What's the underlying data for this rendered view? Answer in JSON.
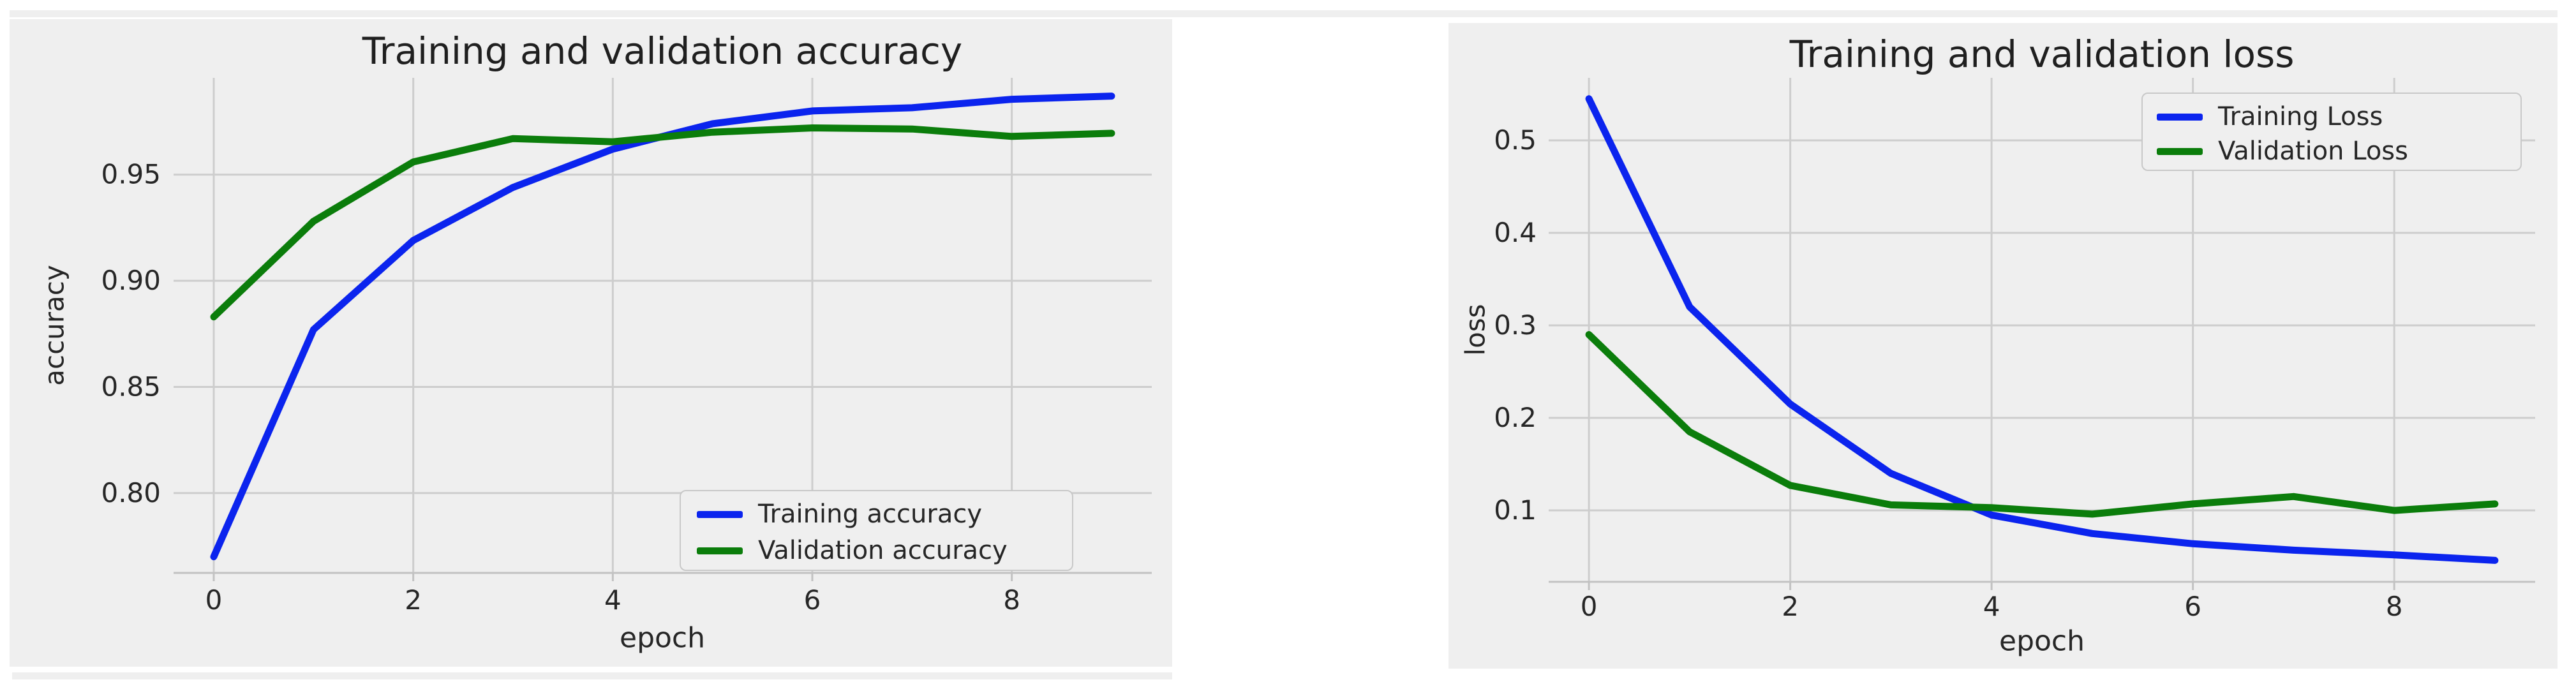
{
  "colors": {
    "page_bg": "#ffffff",
    "figure_bg": "#efefef",
    "grid": "#cdcdcd",
    "spine": "#c2c2c2",
    "tick": "#c2c2c2",
    "text": "#262626",
    "title_text": "#1f1f1f",
    "legend_border": "#c8c8c8",
    "training_color": "#0b24ee",
    "validation_color": "#0b7d0b"
  },
  "chart_data": [
    {
      "type": "line",
      "title": "Training and validation accuracy",
      "xlabel": "epoch",
      "ylabel": "accuracy",
      "x": [
        0,
        1,
        2,
        3,
        4,
        5,
        6,
        7,
        8,
        9
      ],
      "series": [
        {
          "name": "Training accuracy",
          "color": "#0b24ee",
          "values": [
            0.77,
            0.877,
            0.919,
            0.944,
            0.962,
            0.974,
            0.98,
            0.9815,
            0.9855,
            0.987
          ]
        },
        {
          "name": "Validation accuracy",
          "color": "#0b7d0b",
          "values": [
            0.883,
            0.928,
            0.956,
            0.967,
            0.9655,
            0.97,
            0.972,
            0.9715,
            0.968,
            0.9695
          ]
        }
      ],
      "xtick_values": [
        0,
        2,
        4,
        6,
        8
      ],
      "xtick_labels": [
        "0",
        "2",
        "4",
        "6",
        "8"
      ],
      "ytick_values": [
        0.95,
        0.9,
        0.85,
        0.8
      ],
      "ytick_labels": [
        "0.95",
        "0.90",
        "0.85",
        "0.80"
      ],
      "xlim": [
        -0.403,
        9.403
      ],
      "ylim": [
        0.7624,
        0.9956
      ],
      "grid": true,
      "legend_position": "lower right"
    },
    {
      "type": "line",
      "title": "Training and validation loss",
      "xlabel": "epoch",
      "ylabel": "loss",
      "x": [
        0,
        1,
        2,
        3,
        4,
        5,
        6,
        7,
        8,
        9
      ],
      "series": [
        {
          "name": "Training Loss",
          "color": "#0b24ee",
          "values": [
            0.545,
            0.32,
            0.215,
            0.14,
            0.095,
            0.075,
            0.064,
            0.057,
            0.052,
            0.046
          ]
        },
        {
          "name": "Validation Loss",
          "color": "#0b7d0b",
          "values": [
            0.29,
            0.185,
            0.127,
            0.106,
            0.103,
            0.096,
            0.107,
            0.115,
            0.1,
            0.107
          ]
        }
      ],
      "xtick_values": [
        0,
        2,
        4,
        6,
        8
      ],
      "xtick_labels": [
        "0",
        "2",
        "4",
        "6",
        "8"
      ],
      "ytick_values": [
        0.5,
        0.4,
        0.3,
        0.2,
        0.1
      ],
      "ytick_labels": [
        "0.5",
        "0.4",
        "0.3",
        "0.2",
        "0.1"
      ],
      "xlim": [
        -0.4,
        9.4
      ],
      "ylim": [
        0.0228,
        0.5676
      ],
      "grid": true,
      "legend_position": "upper right"
    }
  ]
}
